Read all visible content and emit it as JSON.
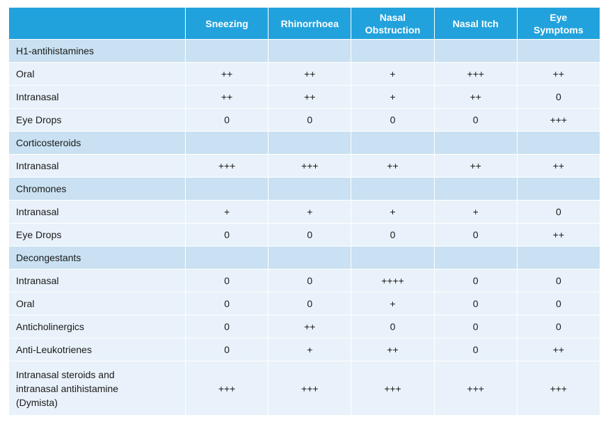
{
  "headers": [
    "Sneezing",
    "Rhinorrhoea",
    "Nasal Obstruction",
    "Nasal Itch",
    "Eye Symptoms"
  ],
  "header_lines": [
    [
      "Sneezing"
    ],
    [
      "Rhinorrhoea"
    ],
    [
      "Nasal",
      "Obstruction"
    ],
    [
      "Nasal Itch"
    ],
    [
      "Eye",
      "Symptoms"
    ]
  ],
  "rows": [
    {
      "type": "category",
      "label": "H1-antihistamines"
    },
    {
      "type": "data",
      "label": "Oral",
      "values": [
        "++",
        "++",
        "+",
        "+++",
        "++"
      ]
    },
    {
      "type": "data",
      "label": "Intranasal",
      "values": [
        "++",
        "++",
        "+",
        "++",
        "0"
      ]
    },
    {
      "type": "data",
      "label": "Eye Drops",
      "values": [
        "0",
        "0",
        "0",
        "0",
        "+++"
      ]
    },
    {
      "type": "category",
      "label": "Corticosteroids"
    },
    {
      "type": "data",
      "label": "Intranasal",
      "values": [
        "+++",
        "+++",
        "++",
        "++",
        "++"
      ]
    },
    {
      "type": "category",
      "label": "Chromones"
    },
    {
      "type": "data",
      "label": "Intranasal",
      "values": [
        "+",
        "+",
        "+",
        "+",
        "0"
      ]
    },
    {
      "type": "data",
      "label": "Eye Drops",
      "values": [
        "0",
        "0",
        "0",
        "0",
        "++"
      ]
    },
    {
      "type": "category",
      "label": "Decongestants"
    },
    {
      "type": "data",
      "label": "Intranasal",
      "values": [
        "0",
        "0",
        "++++",
        "0",
        "0"
      ]
    },
    {
      "type": "data",
      "label": "Oral",
      "values": [
        "0",
        "0",
        "+",
        "0",
        "0"
      ]
    },
    {
      "type": "data",
      "label": "Anticholinergics",
      "values": [
        "0",
        "++",
        "0",
        "0",
        "0"
      ]
    },
    {
      "type": "data",
      "label": "Anti-Leukotrienes",
      "values": [
        "0",
        "+",
        "++",
        "0",
        "++"
      ]
    },
    {
      "type": "data",
      "label_lines": [
        "Intranasal steroids and",
        "intranasal antihistamine",
        "(Dymista)"
      ],
      "values": [
        "+++",
        "+++",
        "+++",
        "+++",
        "+++"
      ]
    }
  ],
  "colors": {
    "header_bg": "#22a2dc",
    "category_bg": "#c9e1f2",
    "row_bg": "#e9f2fa"
  }
}
